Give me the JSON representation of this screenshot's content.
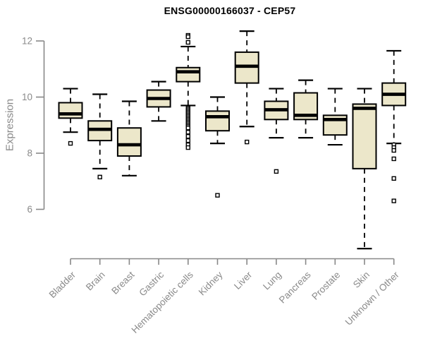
{
  "chart_data": {
    "type": "boxplot",
    "title": "ENSG00000166037 - CEP57",
    "ylabel": "Expression",
    "xlabel": "",
    "ylim": [
      4.2,
      12.45
    ],
    "y_ticks": [
      12,
      10,
      8,
      6
    ],
    "grid": false,
    "legend": "none",
    "categories": [
      "Bladder",
      "Brain",
      "Breast",
      "Gastric",
      "Hematopoietic cells",
      "Kidney",
      "Liver",
      "Lung",
      "Pancreas",
      "Prostate",
      "Skin",
      "Unknown / Other"
    ],
    "boxes": [
      {
        "label": "Bladder",
        "whisker_low": 8.75,
        "q1": 9.25,
        "median": 9.4,
        "q3": 9.8,
        "whisker_high": 10.3,
        "outliers": [
          8.35
        ]
      },
      {
        "label": "Brain",
        "whisker_low": 7.45,
        "q1": 8.45,
        "median": 8.85,
        "q3": 9.15,
        "whisker_high": 10.1,
        "outliers": [
          7.15
        ]
      },
      {
        "label": "Breast",
        "whisker_low": 7.2,
        "q1": 7.9,
        "median": 8.3,
        "q3": 8.9,
        "whisker_high": 9.85,
        "outliers": []
      },
      {
        "label": "Gastric",
        "whisker_low": 9.15,
        "q1": 9.65,
        "median": 9.95,
        "q3": 10.25,
        "whisker_high": 10.55,
        "outliers": []
      },
      {
        "label": "Hematopoietic cells",
        "whisker_low": 9.7,
        "q1": 10.55,
        "median": 10.9,
        "q3": 11.05,
        "whisker_high": 11.8,
        "outliers": [
          12.2,
          12.15,
          11.95,
          9.6,
          9.55,
          9.5,
          9.45,
          9.4,
          9.35,
          9.3,
          9.25,
          9.2,
          9.15,
          9.1,
          9.05,
          9.0,
          8.95,
          8.9,
          8.75,
          8.6,
          8.45,
          8.3,
          8.2
        ]
      },
      {
        "label": "Kidney",
        "whisker_low": 8.35,
        "q1": 8.8,
        "median": 9.3,
        "q3": 9.5,
        "whisker_high": 10.0,
        "outliers": [
          6.5
        ]
      },
      {
        "label": "Liver",
        "whisker_low": 8.95,
        "q1": 10.5,
        "median": 11.1,
        "q3": 11.6,
        "whisker_high": 12.35,
        "outliers": [
          8.4
        ]
      },
      {
        "label": "Lung",
        "whisker_low": 8.55,
        "q1": 9.2,
        "median": 9.55,
        "q3": 9.85,
        "whisker_high": 10.3,
        "outliers": [
          7.35
        ]
      },
      {
        "label": "Pancreas",
        "whisker_low": 8.55,
        "q1": 9.2,
        "median": 9.35,
        "q3": 10.15,
        "whisker_high": 10.6,
        "outliers": []
      },
      {
        "label": "Prostate",
        "whisker_low": 8.3,
        "q1": 8.65,
        "median": 9.2,
        "q3": 9.35,
        "whisker_high": 10.3,
        "outliers": []
      },
      {
        "label": "Skin",
        "whisker_low": 4.6,
        "q1": 7.45,
        "median": 9.6,
        "q3": 9.75,
        "whisker_high": 10.3,
        "outliers": []
      },
      {
        "label": "Unknown / Other",
        "whisker_low": 8.35,
        "q1": 9.7,
        "median": 10.1,
        "q3": 10.5,
        "whisker_high": 11.65,
        "outliers": [
          8.3,
          8.2,
          8.1,
          7.8,
          7.1,
          6.3
        ]
      }
    ],
    "colors": {
      "box_fill": "#ECE7CA",
      "box_border": "#000000",
      "median": "#000000",
      "whisker": "#000000",
      "outlier_fill": "#FFFFFF",
      "axis": "#888888",
      "tick_label": "#8A8A8A",
      "title": "#000000",
      "background": "#FFFFFF"
    }
  }
}
